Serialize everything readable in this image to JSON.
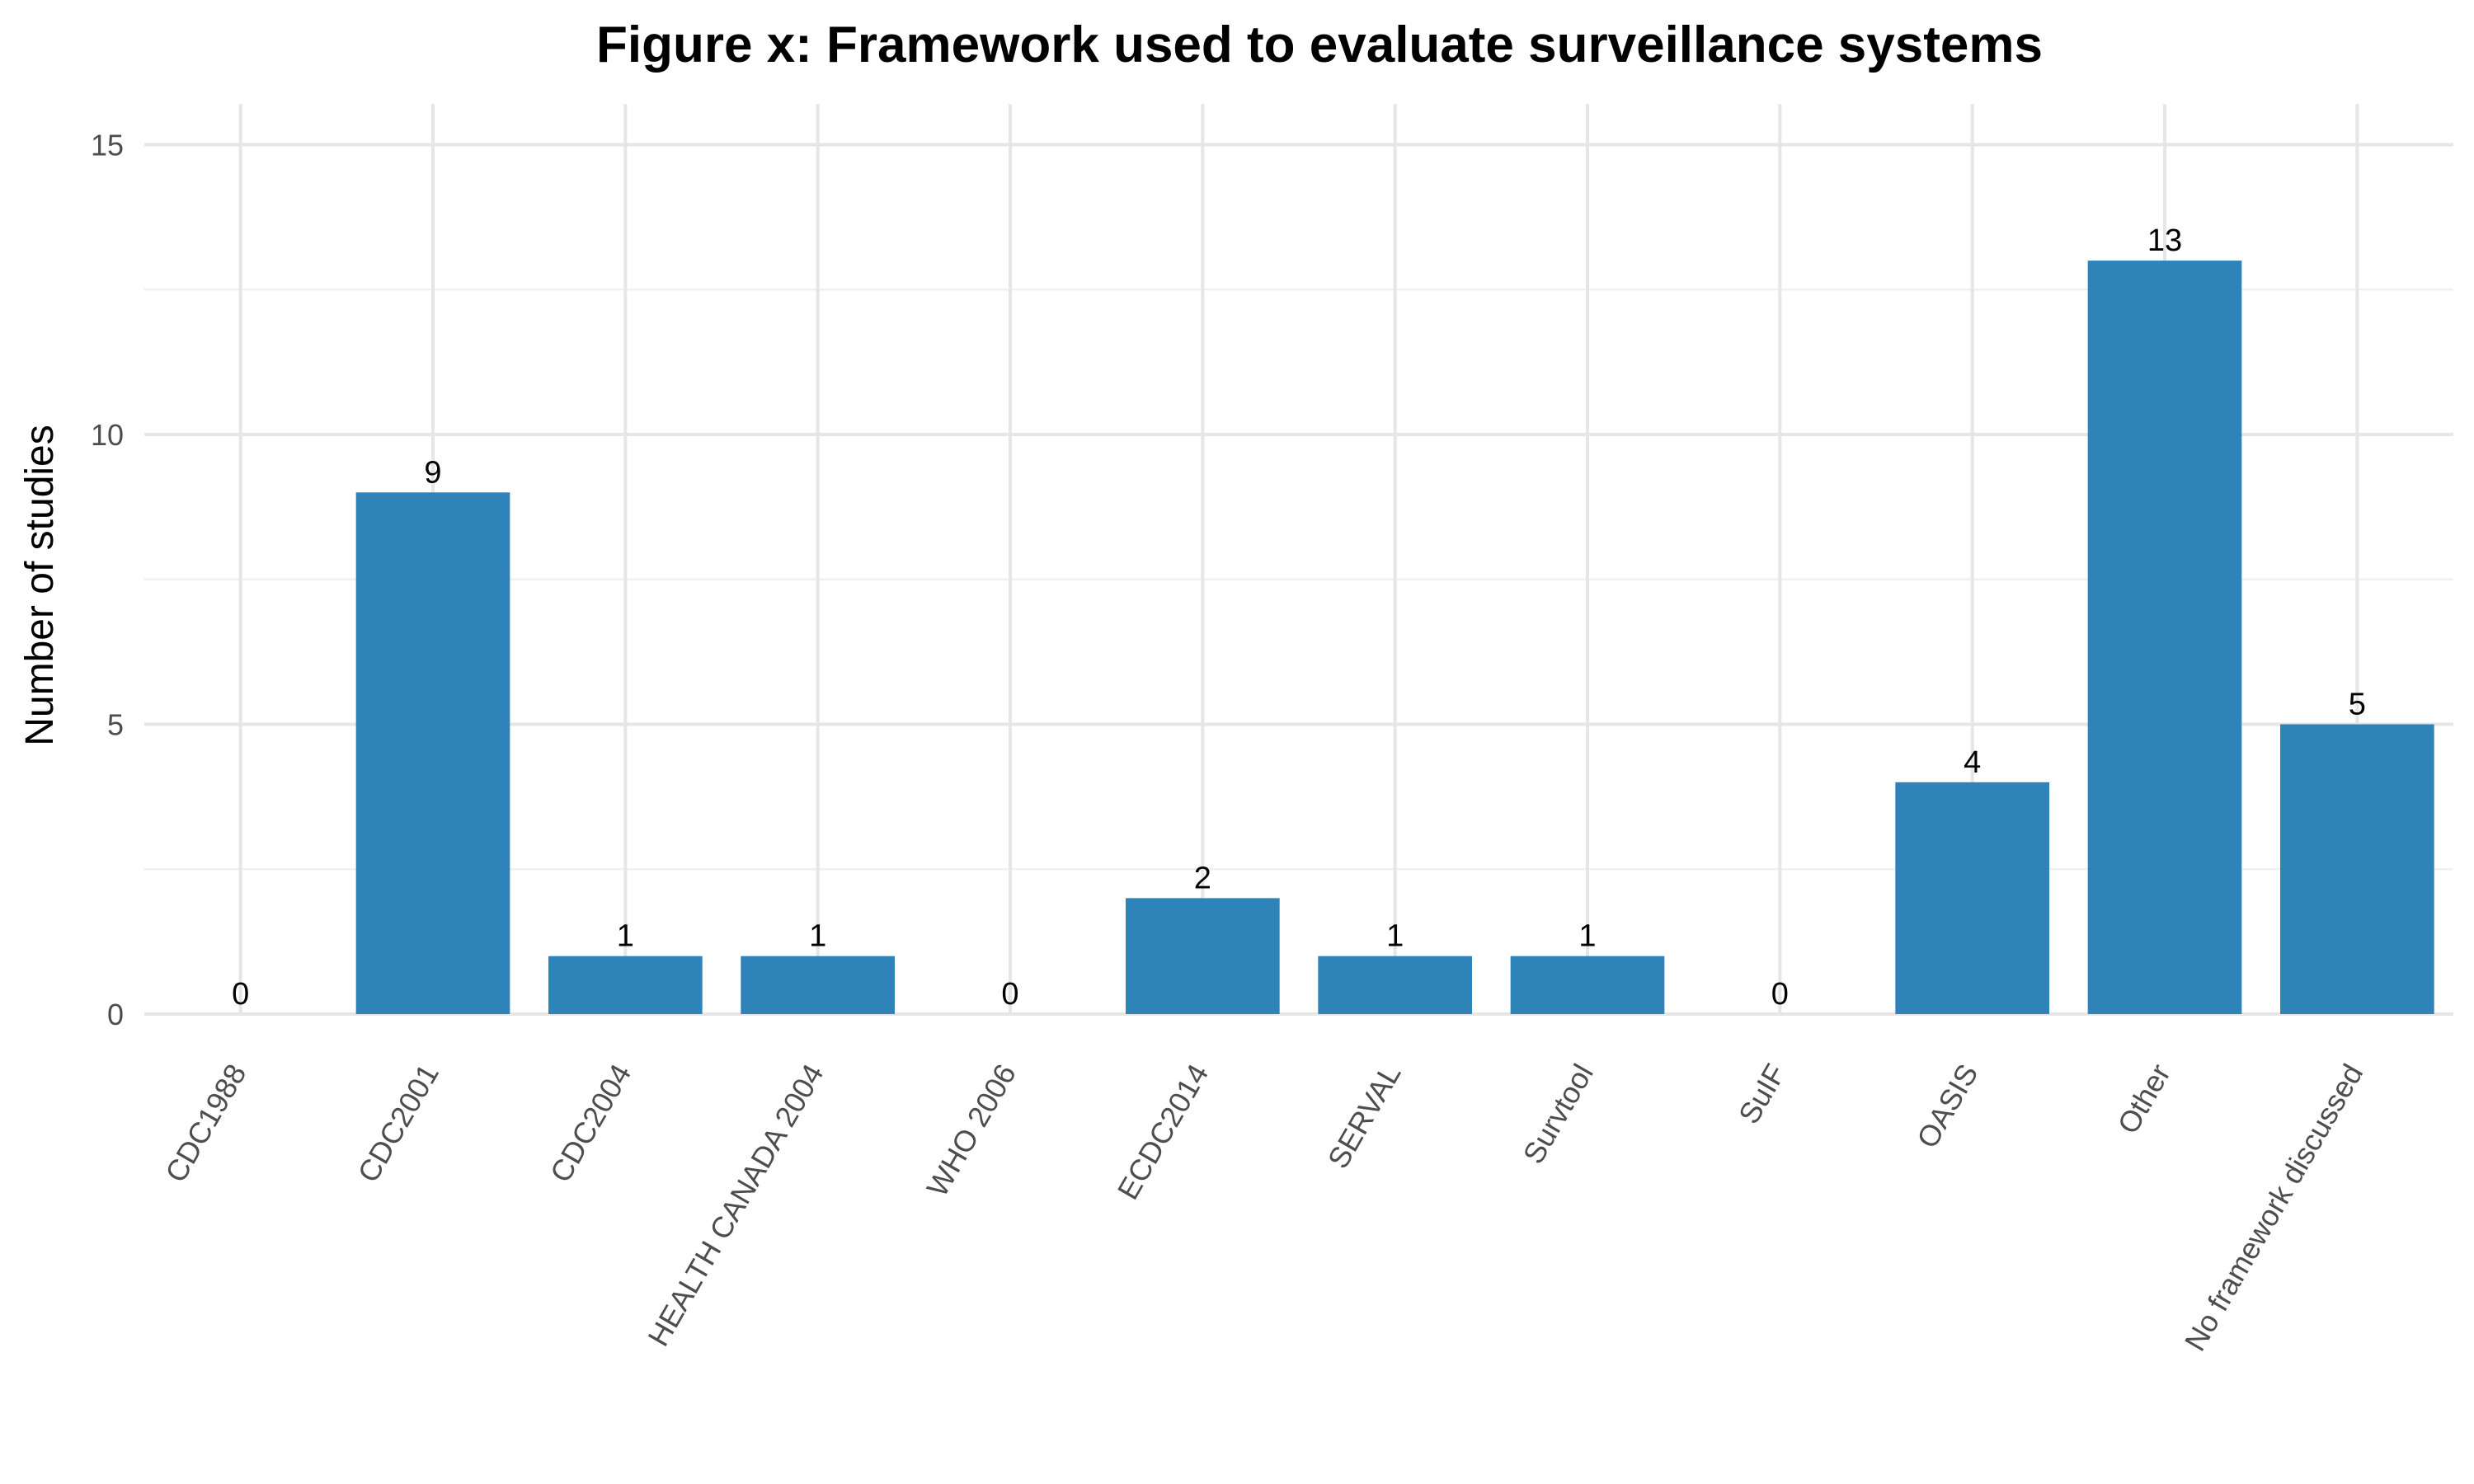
{
  "chart_data": {
    "type": "bar",
    "title": "Figure x: Framework used to evaluate surveillance systems",
    "xlabel": "",
    "ylabel": "Number of studies",
    "categories": [
      "CDC1988",
      "CDC2001",
      "CDC2004",
      "HEALTH CANADA 2004",
      "WHO 2006",
      "ECDC2014",
      "SERVAL",
      "Survtool",
      "SuIF",
      "OASIS",
      "Other",
      "No framework discussed"
    ],
    "values": [
      0,
      9,
      1,
      1,
      0,
      2,
      1,
      1,
      0,
      4,
      13,
      5
    ],
    "ylim": [
      0,
      15.7
    ],
    "yticks": [
      0,
      5,
      10,
      15
    ],
    "grid": true,
    "legend": "none",
    "bar_color": "#2e83b9"
  }
}
